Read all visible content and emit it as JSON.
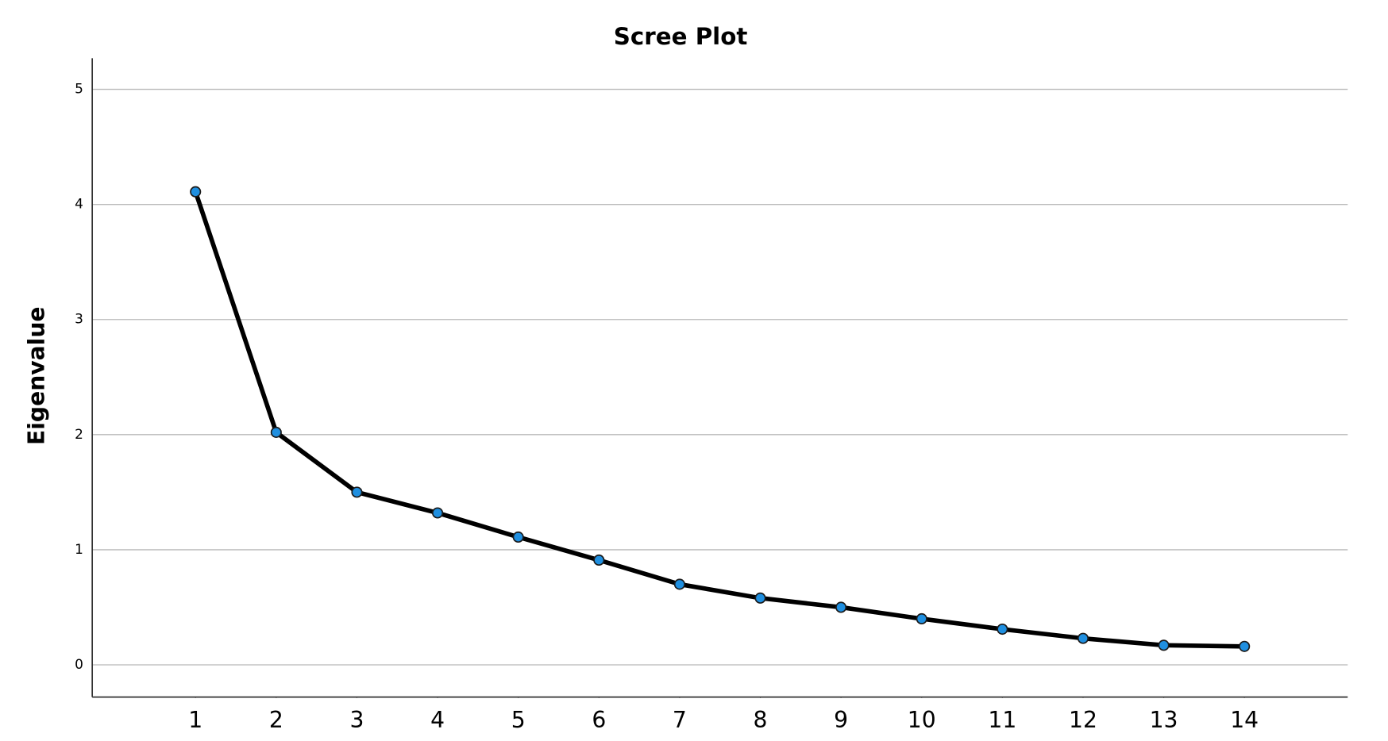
{
  "chart_data": {
    "type": "line",
    "title": "Scree Plot",
    "y_label": "Eigenvalue",
    "x": [
      1,
      2,
      3,
      4,
      5,
      6,
      7,
      8,
      9,
      10,
      11,
      12,
      13,
      14
    ],
    "values": [
      4.11,
      2.02,
      1.5,
      1.32,
      1.11,
      0.91,
      0.7,
      0.58,
      0.5,
      0.4,
      0.31,
      0.23,
      0.17,
      0.16
    ],
    "color": "#000000",
    "marker_color": "#1f8fe0",
    "xlim": [
      -0.28,
      15.28
    ],
    "xticks": [
      1,
      2,
      3,
      4,
      5,
      6,
      7,
      8,
      9,
      10,
      11,
      12,
      13,
      14
    ],
    "ylim": [
      -0.28,
      5.27
    ],
    "yticks": [
      0,
      1,
      2,
      3,
      4,
      5
    ],
    "grid": true
  }
}
